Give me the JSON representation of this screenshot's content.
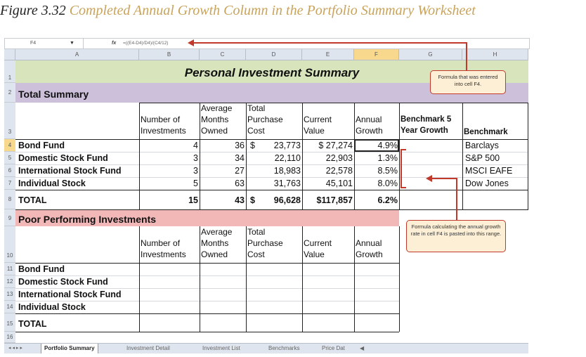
{
  "caption": {
    "prefix": "Figure 3.32",
    "title": "Completed Annual Growth Column in the Portfolio Summary Worksheet"
  },
  "formula_bar": {
    "cell_ref": "F4",
    "fx": "fx",
    "formula": "=((E4-D4)/D4)/(C4/12)"
  },
  "columns": [
    "A",
    "B",
    "C",
    "D",
    "E",
    "F",
    "G",
    "H"
  ],
  "rows": [
    "1",
    "2",
    "3",
    "4",
    "5",
    "6",
    "7",
    "8",
    "9",
    "10",
    "11",
    "12",
    "13",
    "14",
    "15",
    "16"
  ],
  "sheet": {
    "title": "Personal Investment Summary",
    "total_summary": "Total Summary",
    "poor_performing": "Poor Performing Investments",
    "headers": {
      "num_investments": [
        "Number of",
        "Investments"
      ],
      "avg_months": [
        "Average",
        "Months",
        "Owned"
      ],
      "total_purchase": [
        "Total",
        "Purchase",
        "Cost"
      ],
      "current_value": [
        "Current",
        "Value"
      ],
      "annual_growth": [
        "Annual",
        "Growth"
      ],
      "benchmark5": [
        "Benchmark 5",
        "Year Growth"
      ],
      "benchmark": "Benchmark"
    },
    "summary_rows": [
      {
        "name": "Bond Fund",
        "num": "4",
        "months": "36",
        "cost_sym": "$",
        "cost": "23,773",
        "value": "$ 27,274",
        "growth": "4.9%",
        "bench": "Barclays"
      },
      {
        "name": "Domestic Stock Fund",
        "num": "3",
        "months": "34",
        "cost_sym": "",
        "cost": "22,110",
        "value": "22,903",
        "growth": "1.3%",
        "bench": "S&P 500"
      },
      {
        "name": "International Stock Fund",
        "num": "3",
        "months": "27",
        "cost_sym": "",
        "cost": "18,983",
        "value": "22,578",
        "growth": "8.5%",
        "bench": "MSCI EAFE"
      },
      {
        "name": "Individual Stock",
        "num": "5",
        "months": "63",
        "cost_sym": "",
        "cost": "31,763",
        "value": "45,101",
        "growth": "8.0%",
        "bench": "Dow Jones"
      }
    ],
    "total_row": {
      "name": "TOTAL",
      "num": "15",
      "months": "43",
      "cost_sym": "$",
      "cost": "96,628",
      "value": "$117,857",
      "growth": "6.2%"
    },
    "poor_rows": [
      "Bond Fund",
      "Domestic Stock Fund",
      "International Stock Fund",
      "Individual Stock"
    ],
    "poor_total": "TOTAL"
  },
  "callouts": {
    "formula_entered": "Formula that was entered into cell F4.",
    "formula_pasted": "Formula calculating the annual growth rate in cell F4 is pasted into this range."
  },
  "tabs": [
    "Portfolio Summary",
    "Investment Detail",
    "Investment List",
    "Benchmarks",
    "Price Dat"
  ],
  "colors": {
    "title_bg": "#d8e4bc",
    "summary_bg": "#ccc0da",
    "poor_bg": "#f2b8b8",
    "accent_red": "#c0392b"
  }
}
